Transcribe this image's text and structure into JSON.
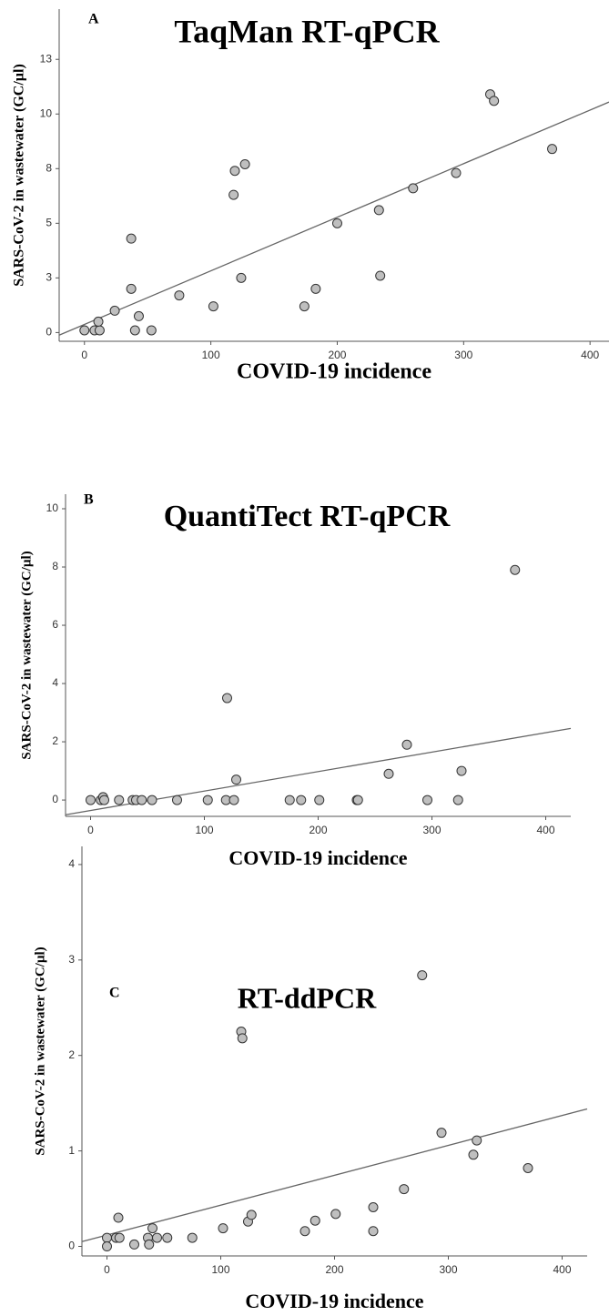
{
  "chart_data": [
    {
      "type": "scatter",
      "panel": "A",
      "title": "TaqMan RT-qPCR",
      "xlabel": "COVID-19 incidence",
      "ylabel": "SARS-CoV-2 in wastewater (GC/µl)",
      "x": [
        0,
        8,
        12,
        11,
        24,
        37,
        37,
        40,
        43,
        53,
        75,
        102,
        118,
        119,
        124,
        127,
        174,
        183,
        200,
        233,
        234,
        260,
        294,
        321,
        324,
        370
      ],
      "y": [
        0.1,
        0.1,
        0.1,
        0.5,
        1.0,
        4.3,
        2.0,
        0.1,
        0.75,
        0.1,
        1.7,
        1.2,
        6.3,
        7.4,
        2.5,
        7.7,
        1.2,
        2.0,
        5.0,
        5.6,
        2.6,
        6.6,
        7.3,
        10.9,
        10.6,
        8.4
      ],
      "xlim": [
        -20,
        415
      ],
      "ylim": [
        -0.4,
        14.8
      ],
      "xticks": [
        0,
        100,
        200,
        300,
        400
      ],
      "yticks": [
        0,
        {
          "value": 2.5,
          "label": "3"
        },
        5,
        {
          "value": 7.5,
          "label": "8"
        },
        10,
        {
          "value": 12.5,
          "label": "13"
        }
      ],
      "regression_line": true,
      "color": "#bfbfbf"
    },
    {
      "type": "scatter",
      "panel": "B",
      "title": "QuantiTect RT-qPCR",
      "xlabel": "COVID-19 incidence",
      "ylabel": "SARS-CoV-2 in wastewater (GC/µl)",
      "x": [
        0,
        9,
        11,
        12,
        25,
        37,
        40,
        45,
        54,
        76,
        103,
        119,
        120,
        126,
        128,
        175,
        185,
        201,
        234,
        235,
        262,
        278,
        296,
        323,
        326,
        373
      ],
      "y": [
        0,
        0,
        0.1,
        0,
        0,
        0,
        0,
        0,
        0,
        0,
        0,
        0,
        3.5,
        0,
        0.7,
        0,
        0,
        0,
        0,
        0,
        0.9,
        1.9,
        0,
        0,
        1.0,
        7.9
      ],
      "xlim": [
        -22,
        422
      ],
      "ylim": [
        -0.56,
        10.5
      ],
      "xticks": [
        0,
        100,
        200,
        300,
        400
      ],
      "yticks": [
        0,
        2,
        4,
        6,
        8,
        10
      ],
      "regression_line": true,
      "color": "#bfbfbf"
    },
    {
      "type": "scatter",
      "panel": "C",
      "title": "RT-ddPCR",
      "xlabel": "COVID-19 incidence",
      "ylabel": "SARS-CoV-2 in wastewater (GC/µl)",
      "x": [
        0,
        0,
        8,
        10,
        11,
        24,
        36,
        37,
        40,
        44,
        53,
        75,
        102,
        118,
        119,
        124,
        127,
        174,
        183,
        201,
        234,
        234,
        261,
        277,
        294,
        322,
        325,
        370
      ],
      "y": [
        0.09,
        0,
        0.09,
        0.3,
        0.09,
        0.02,
        0.09,
        0.02,
        0.19,
        0.09,
        0.09,
        0.09,
        0.19,
        2.25,
        2.18,
        0.26,
        0.33,
        0.16,
        0.27,
        0.34,
        0.41,
        0.16,
        0.6,
        2.84,
        1.19,
        0.96,
        1.11,
        0.82
      ],
      "xlim": [
        -22,
        422
      ],
      "ylim": [
        -0.1,
        4.19
      ],
      "xticks": [
        0,
        100,
        200,
        300,
        400
      ],
      "yticks": [
        0,
        1,
        2,
        3,
        4
      ],
      "regression_line": true,
      "color": "#bfbfbf"
    }
  ]
}
